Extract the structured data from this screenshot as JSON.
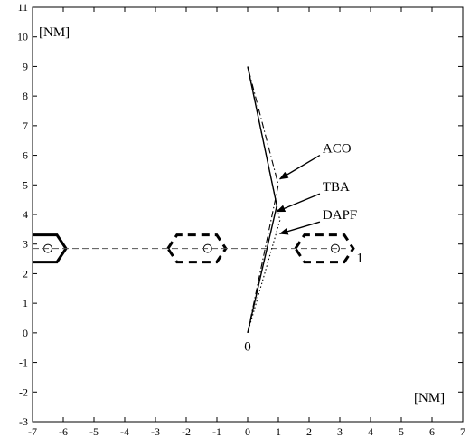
{
  "chart_data": {
    "type": "line",
    "xlim": [
      -7,
      7
    ],
    "ylim": [
      -3,
      11
    ],
    "x_ticks": [
      -7,
      -6,
      -5,
      -4,
      -3,
      -2,
      -1,
      0,
      1,
      2,
      3,
      4,
      5,
      6,
      7
    ],
    "y_ticks": [
      -3,
      -2,
      -1,
      0,
      1,
      2,
      3,
      4,
      5,
      6,
      7,
      8,
      9,
      10,
      11
    ],
    "unit_label_top": "[NM]",
    "unit_label_bottom": "[NM]",
    "grid": false,
    "series": [
      {
        "name": "ACO",
        "style": "dash-dot",
        "points": [
          [
            0,
            0
          ],
          [
            1.0,
            5.0
          ],
          [
            0,
            9
          ]
        ]
      },
      {
        "name": "TBA",
        "style": "solid",
        "points": [
          [
            0,
            0
          ],
          [
            0.95,
            4.3
          ],
          [
            0,
            9
          ]
        ]
      },
      {
        "name": "DAPF",
        "style": "dotted",
        "points": [
          [
            0,
            0
          ],
          [
            1.05,
            3.8
          ],
          [
            0,
            9
          ]
        ]
      }
    ],
    "arrow_annotations": [
      {
        "text": "ACO",
        "from": [
          2.35,
          6.0
        ],
        "to": [
          1.05,
          5.2
        ]
      },
      {
        "text": "TBA",
        "from": [
          2.35,
          4.7
        ],
        "to": [
          0.95,
          4.1
        ]
      },
      {
        "text": "DAPF",
        "from": [
          2.35,
          3.75
        ],
        "to": [
          1.05,
          3.35
        ]
      }
    ],
    "point_labels": [
      {
        "text": "0",
        "at": [
          0,
          -0.45
        ]
      },
      {
        "text": "1",
        "at": [
          3.65,
          2.55
        ]
      }
    ],
    "obstacles": [
      {
        "center": [
          -6.5,
          2.85
        ],
        "style": "solid",
        "clip": "left"
      },
      {
        "center": [
          -1.3,
          2.85
        ],
        "style": "dashed"
      },
      {
        "center": [
          2.85,
          2.85
        ],
        "style": "dashed"
      }
    ],
    "obstacle_track": {
      "from": [
        -7,
        2.85
      ],
      "to": [
        3.2,
        2.85
      ],
      "style": "dashed"
    }
  }
}
